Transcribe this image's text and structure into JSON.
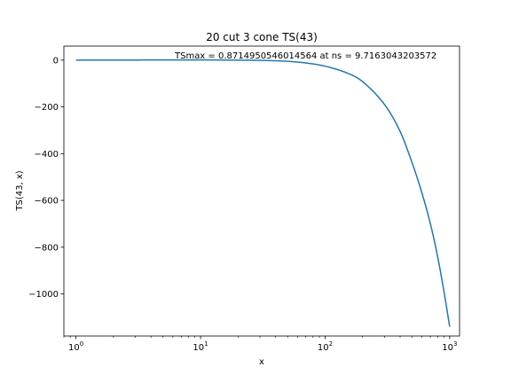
{
  "chart_data": {
    "type": "line",
    "title": "20 cut 3 cone TS(43)",
    "annotation": "TSmax = 0.8714950546014564 at ns = 9.7163043203572",
    "xlabel": "x",
    "ylabel": "TS(43, x)",
    "xscale": "log",
    "xlim": [
      0.8,
      1200
    ],
    "ylim": [
      -1180,
      60
    ],
    "grid": false,
    "xticks": [
      {
        "base": "10",
        "exp": "0",
        "value": 1
      },
      {
        "base": "10",
        "exp": "1",
        "value": 10
      },
      {
        "base": "10",
        "exp": "2",
        "value": 100
      },
      {
        "base": "10",
        "exp": "3",
        "value": 1000
      }
    ],
    "yticks": [
      {
        "label": "0",
        "value": 0
      },
      {
        "label": "−200",
        "value": -200
      },
      {
        "label": "−400",
        "value": -400
      },
      {
        "label": "−600",
        "value": -600
      },
      {
        "label": "−800",
        "value": -800
      },
      {
        "label": "−1000",
        "value": -1000
      }
    ],
    "series": [
      {
        "color": "#1f77b4",
        "x": [
          1,
          2,
          5,
          10,
          20,
          30,
          40,
          50,
          70,
          100,
          150,
          200,
          300,
          400,
          500,
          600,
          700,
          800,
          900,
          1000
        ],
        "y": [
          0,
          0.3,
          0.7,
          0.87,
          0,
          -1,
          -2.8,
          -5.2,
          -12,
          -26,
          -55,
          -92,
          -190,
          -305,
          -440,
          -570,
          -700,
          -840,
          -990,
          -1140
        ]
      }
    ]
  }
}
